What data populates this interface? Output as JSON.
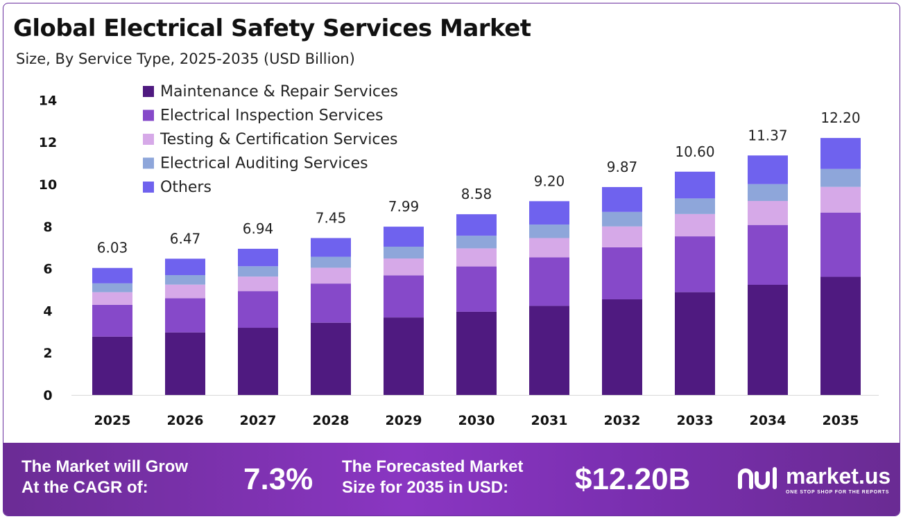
{
  "header": {
    "title": "Global Electrical Safety Services Market",
    "subtitle": "Size, By Service Type, 2025-2035 (USD Billion)"
  },
  "chart_data": {
    "type": "bar",
    "stacked": true,
    "title": "Global Electrical Safety Services Market",
    "subtitle": "Size, By Service Type, 2025-2035 (USD Billion)",
    "categories": [
      "2025",
      "2026",
      "2027",
      "2028",
      "2029",
      "2030",
      "2031",
      "2032",
      "2033",
      "2034",
      "2035"
    ],
    "ylim": [
      0,
      14
    ],
    "yticks": [
      0,
      2,
      4,
      6,
      8,
      10,
      12,
      14
    ],
    "grid": false,
    "legend_position": "top-left",
    "series": [
      {
        "name": "Maintenance & Repair Services",
        "color": "#4f1a80",
        "values": [
          2.77,
          2.97,
          3.19,
          3.43,
          3.68,
          3.95,
          4.23,
          4.54,
          4.88,
          5.23,
          5.61
        ]
      },
      {
        "name": "Electrical Inspection Services",
        "color": "#8649c9",
        "values": [
          1.51,
          1.62,
          1.74,
          1.86,
          2.0,
          2.15,
          2.3,
          2.47,
          2.65,
          2.84,
          3.05
        ]
      },
      {
        "name": "Testing & Certification Services",
        "color": "#d6a9e8",
        "values": [
          0.6,
          0.65,
          0.69,
          0.75,
          0.8,
          0.86,
          0.92,
          0.99,
          1.06,
          1.14,
          1.22
        ]
      },
      {
        "name": "Electrical Auditing Services",
        "color": "#8ea6da",
        "values": [
          0.42,
          0.45,
          0.49,
          0.52,
          0.56,
          0.6,
          0.64,
          0.69,
          0.74,
          0.8,
          0.85
        ]
      },
      {
        "name": "Others",
        "color": "#6f62ee",
        "values": [
          0.73,
          0.78,
          0.83,
          0.89,
          0.95,
          1.02,
          1.11,
          1.18,
          1.27,
          1.36,
          1.47
        ]
      }
    ],
    "totals": [
      "6.03",
      "6.47",
      "6.94",
      "7.45",
      "7.99",
      "8.58",
      "9.20",
      "9.87",
      "10.60",
      "11.37",
      "12.20"
    ]
  },
  "footer": {
    "cagr_label": "The Market will Grow\nAt the CAGR of:",
    "cagr_value": "7.3%",
    "forecast_label": "The Forecasted Market\nSize for 2035 in USD:",
    "forecast_value": "$12.20B",
    "brand_name": "market.us",
    "brand_tagline": "ONE STOP SHOP FOR THE REPORTS",
    "brand_icon": "market-us-logo-icon"
  }
}
